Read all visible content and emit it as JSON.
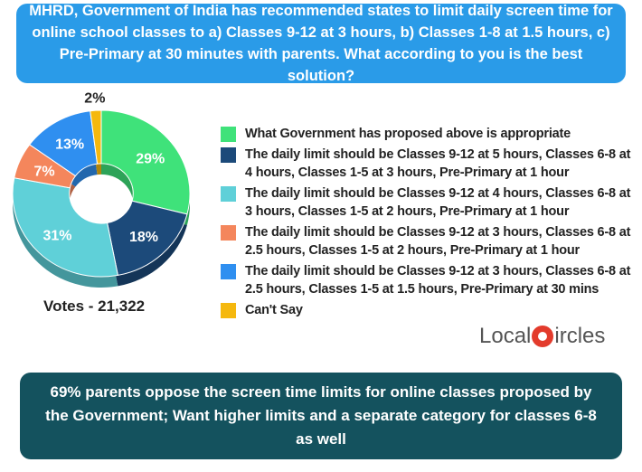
{
  "question": "MHRD, Government of India has recommended states to limit daily screen time for online school classes to a) Classes 9-12 at 3 hours, b) Classes 1-8 at 1.5 hours, c) Pre-Primary at 30 minutes with parents. What according to you is the best solution?",
  "chart_data": {
    "type": "pie",
    "donut": true,
    "title": "",
    "slices": [
      {
        "label": "What Government has proposed above is appropriate",
        "value": 29,
        "color": "#3fe27a"
      },
      {
        "label": "The daily limit should be Classes 9-12 at 5 hours, Classes 6-8 at 4 hours, Classes 1-5 at 3 hours, Pre-Primary at 1 hour",
        "value": 18,
        "color": "#1c4a7a"
      },
      {
        "label": "The daily limit should be Classes 9-12 at 4 hours, Classes 6-8 at 3 hours, Classes 1-5 at 2 hours, Pre-Primary at 1 hour",
        "value": 31,
        "color": "#5fd0d8"
      },
      {
        "label": "The daily limit should be Classes 9-12 at 3 hours, Classes 6-8 at 2.5 hours, Classes 1-5 at 2 hours, Pre-Primary at 1 hour",
        "value": 7,
        "color": "#f4865c"
      },
      {
        "label": "The daily limit should be Classes 9-12 at 3 hours, Classes 6-8 at 2.5 hours, Classes 1-5 at 1.5 hours, Pre-Primary at 30 mins",
        "value": 13,
        "color": "#2f8ff0"
      },
      {
        "label": "Can't Say",
        "value": 2,
        "color": "#f5b80e"
      }
    ],
    "value_labels": [
      "29%",
      "18%",
      "31%",
      "7%",
      "13%",
      "2%"
    ],
    "legend_position": "right"
  },
  "votes": "Votes - 21,322",
  "logo": {
    "text_before": "Local",
    "text_after": "ircles"
  },
  "summary": "69% parents oppose the screen time limits for online classes proposed by the Government; Want higher limits and a separate category for classes 6-8 as well"
}
